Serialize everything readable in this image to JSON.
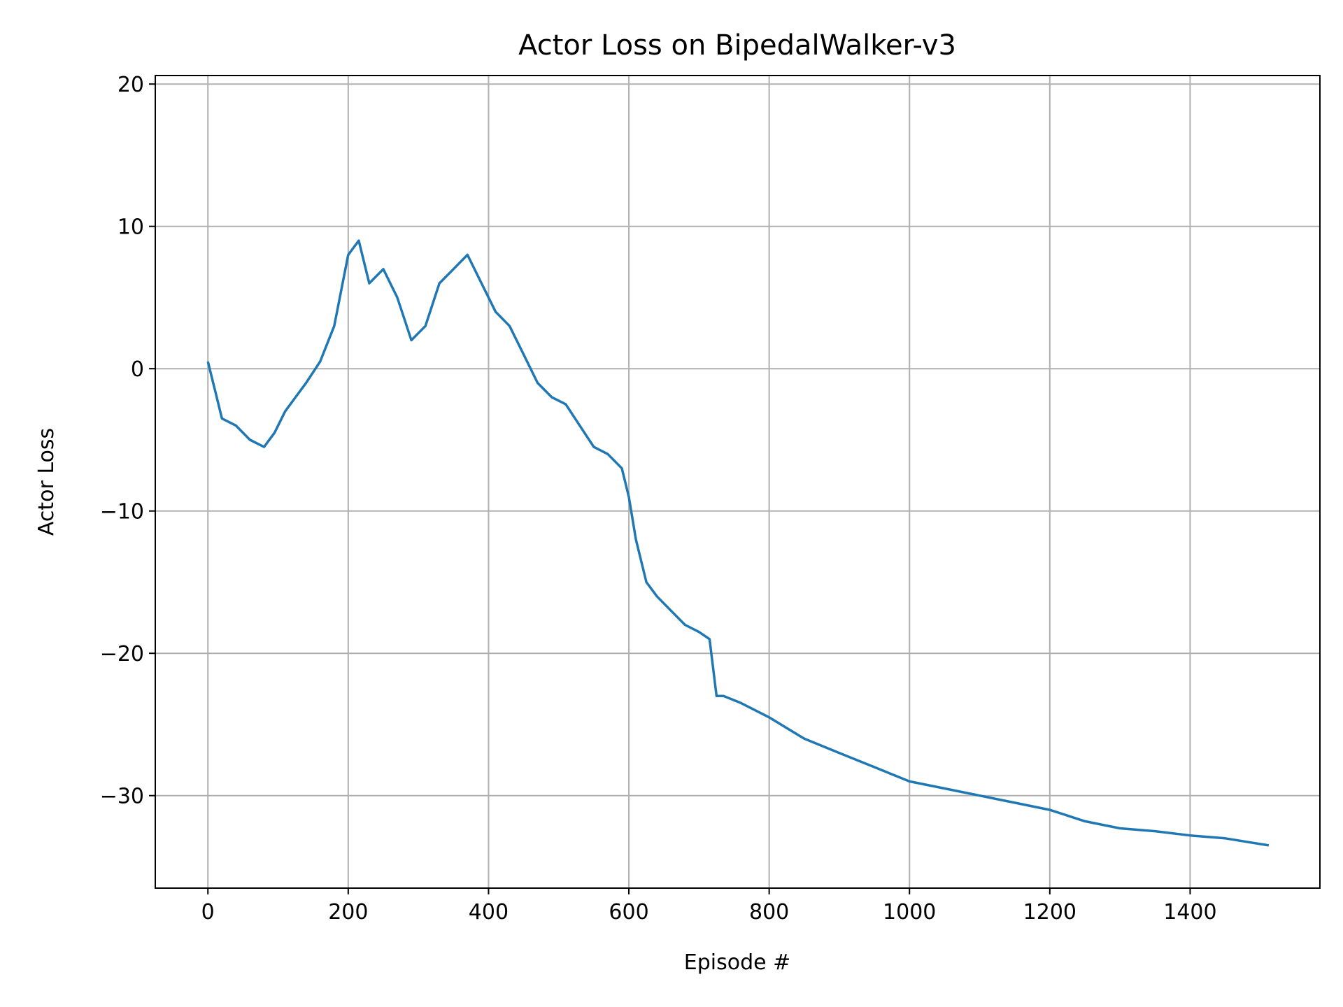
{
  "chart_data": {
    "type": "line",
    "title": "Actor Loss on BipedalWalker-v3",
    "xlabel": "Episode #",
    "ylabel": "Actor Loss",
    "xlim": [
      -75,
      1585
    ],
    "ylim": [
      -36.5,
      20.6
    ],
    "x_ticks": [
      0,
      200,
      400,
      600,
      800,
      1000,
      1200,
      1400
    ],
    "y_ticks": [
      -30,
      -20,
      -10,
      0,
      10,
      20
    ],
    "x_tick_labels": [
      "0",
      "200",
      "400",
      "600",
      "800",
      "1000",
      "1200",
      "1400"
    ],
    "y_tick_labels": [
      "−30",
      "−20",
      "−10",
      "0",
      "10",
      "20"
    ],
    "grid": true,
    "colors": {
      "series": "#1f77b4",
      "grid": "#b0b0b0",
      "axes": "#000000"
    },
    "series": [
      {
        "x": [
          0,
          10,
          20,
          40,
          60,
          80,
          95,
          110,
          125,
          140,
          160,
          180,
          200,
          215,
          230,
          250,
          270,
          290,
          310,
          330,
          350,
          370,
          390,
          410,
          430,
          450,
          470,
          490,
          510,
          530,
          550,
          570,
          590,
          600,
          610,
          625,
          640,
          660,
          680,
          700,
          715,
          725,
          735,
          760,
          800,
          850,
          900,
          950,
          1000,
          1050,
          1100,
          1150,
          1200,
          1250,
          1300,
          1350,
          1400,
          1450,
          1512
        ],
        "y": [
          0.5,
          -1.5,
          -3.5,
          -4,
          -5,
          -5.5,
          -4.5,
          -3,
          -2,
          -1,
          0.5,
          3,
          8,
          9,
          6,
          7,
          5,
          2,
          3,
          6,
          7,
          8,
          6,
          4,
          3,
          1,
          -1,
          -2,
          -2.5,
          -4,
          -5.5,
          -6,
          -7,
          -9,
          -12,
          -15,
          -16,
          -17,
          -18,
          -18.5,
          -19,
          -23,
          -23,
          -23.5,
          -24.5,
          -26,
          -27,
          -28,
          -29,
          -29.5,
          -30,
          -30.5,
          -31,
          -31.8,
          -32.3,
          -32.5,
          -32.8,
          -33,
          -33.5
        ]
      }
    ]
  }
}
